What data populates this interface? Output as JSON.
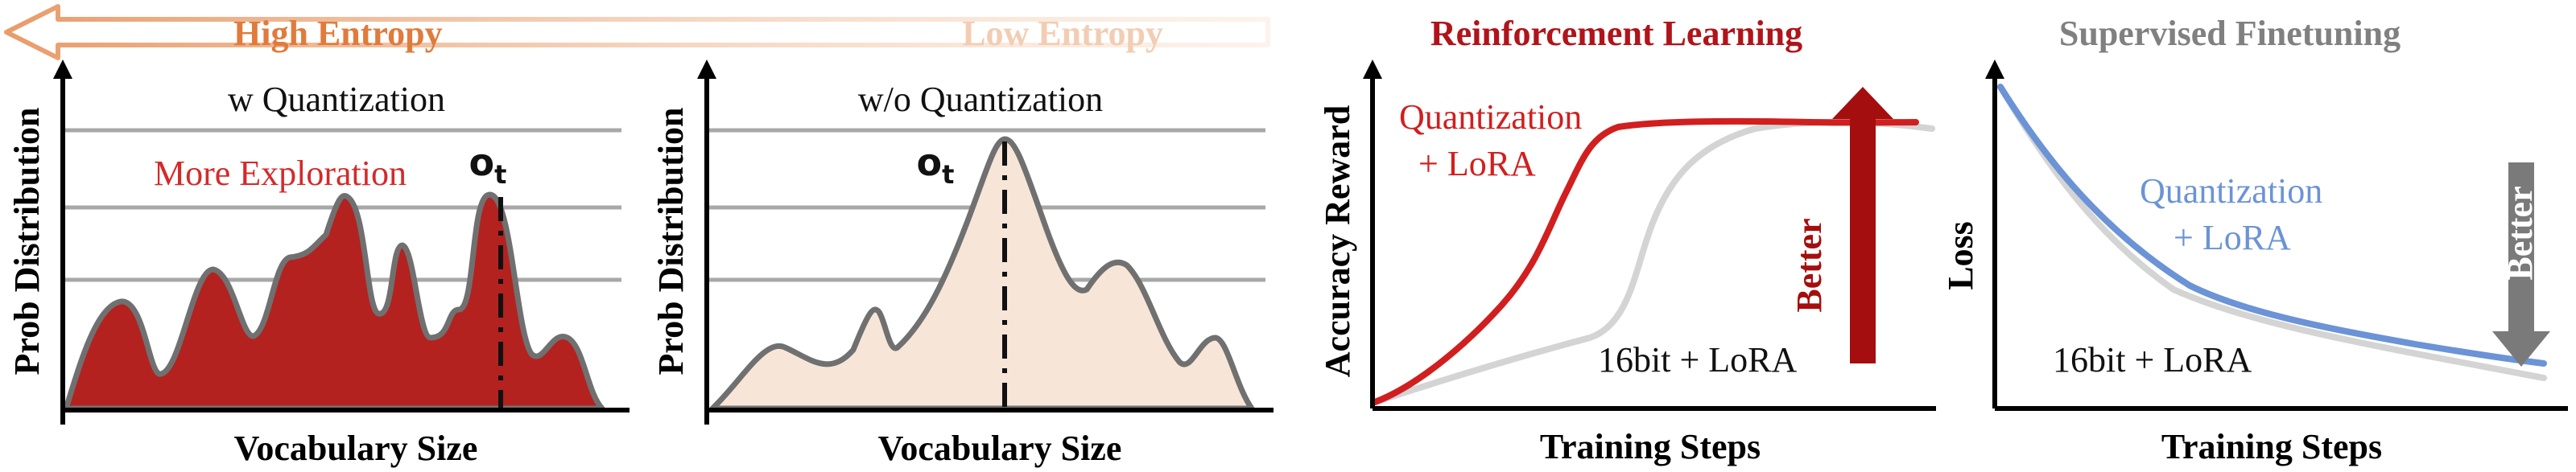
{
  "entropy_banner": {
    "high_label": "High Entropy",
    "low_label": "Low Entropy",
    "high_color": "#e07b3c",
    "low_color": "#f2cdb3"
  },
  "panel_quant": {
    "title": "w Quantization",
    "annotation": "More Exploration",
    "marker": "o",
    "marker_sub": "t",
    "ylabel": "Prob Distribution",
    "xlabel": "Vocabulary Size",
    "fill_color": "#b3221f"
  },
  "panel_noquant": {
    "title": "w/o Quantization",
    "marker": "o",
    "marker_sub": "t",
    "ylabel": "Prob Distribution",
    "xlabel": "Vocabulary Size",
    "fill_color": "#f7e6d8"
  },
  "panel_rl": {
    "title": "Reinforcement Learning",
    "ylabel": "Accuracy Reward",
    "xlabel": "Training Steps",
    "series": [
      {
        "name_line1": "Quantization",
        "name_line2": "+ LoRA",
        "color": "#d11f1f"
      },
      {
        "name": "16bit + LoRA",
        "color": "#d4d4d4"
      }
    ],
    "arrow_label": "Better",
    "arrow_color": "#a50e0e",
    "title_color": "#b0141a"
  },
  "panel_sft": {
    "title": "Supervised Finetuning",
    "ylabel": "Loss",
    "xlabel": "Training Steps",
    "series": [
      {
        "name_line1": "Quantization",
        "name_line2": "+ LoRA",
        "color": "#6b93d6"
      },
      {
        "name": "16bit + LoRA",
        "color": "#d4d4d4"
      }
    ],
    "arrow_label": "Better",
    "arrow_color": "#7a7a7a",
    "title_color": "#808080"
  }
}
